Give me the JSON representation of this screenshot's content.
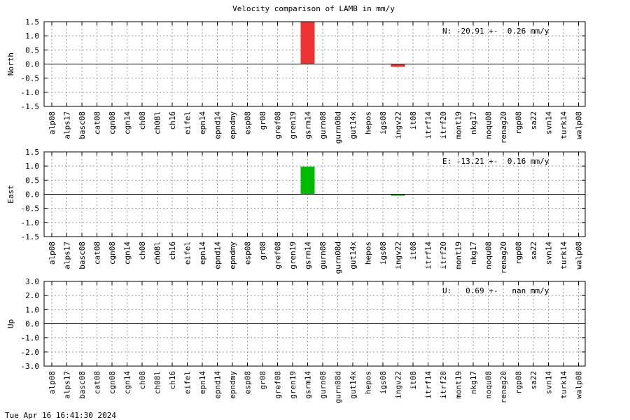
{
  "footer": "Tue Apr 16 16:41:30 2024",
  "colors": {
    "north_bar": "#ee3333",
    "east_bar": "#00bb00",
    "up_bar": "#0000cc",
    "grid": "#9a9a9a"
  },
  "chart_data": [
    {
      "type": "bar",
      "title": "Velocity comparison of LAMB in mm/y",
      "ylabel": "North",
      "annotation": "N: -20.91 +-  0.26 mm/y",
      "ylim": [
        -1.5,
        1.5
      ],
      "yticks": [
        "1.5",
        "1.0",
        "0.5",
        "0.0",
        "-0.5",
        "-1.0",
        "-1.5"
      ],
      "grid": true,
      "categories": [
        "alp08",
        "alps17",
        "basc08",
        "cat08",
        "cgn08",
        "cgn14",
        "ch08",
        "ch08l",
        "ch16",
        "eifel",
        "epn14",
        "epnd14",
        "epndmy",
        "esp08",
        "gr08",
        "gref08",
        "gren19",
        "gsrm14",
        "gurn08",
        "gurn08d",
        "gut14x",
        "hepos",
        "igs08",
        "ingv22",
        "it08",
        "itrf14",
        "itrf20",
        "mont19",
        "nkg17",
        "noqu08",
        "renag20",
        "rgp08",
        "sa22",
        "svn14",
        "turk14",
        "walp08"
      ],
      "values": [
        0,
        0,
        0,
        0,
        0,
        0,
        0,
        0,
        0,
        0,
        0,
        0,
        0,
        0,
        0,
        0,
        0,
        1.5,
        0,
        0,
        0,
        0,
        0,
        -0.1,
        0,
        0,
        0,
        0,
        0,
        0,
        0,
        0,
        0,
        0,
        0,
        0
      ]
    },
    {
      "type": "bar",
      "title": "",
      "ylabel": "East",
      "annotation": "E: -13.21 +-  0.16 mm/y",
      "ylim": [
        -1.5,
        1.5
      ],
      "yticks": [
        "1.5",
        "1.0",
        "0.5",
        "0.0",
        "-0.5",
        "-1.0",
        "-1.5"
      ],
      "grid": true,
      "categories": [
        "alp08",
        "alps17",
        "basc08",
        "cat08",
        "cgn08",
        "cgn14",
        "ch08",
        "ch08l",
        "ch16",
        "eifel",
        "epn14",
        "epnd14",
        "epndmy",
        "esp08",
        "gr08",
        "gref08",
        "gren19",
        "gsrm14",
        "gurn08",
        "gurn08d",
        "gut14x",
        "hepos",
        "igs08",
        "ingv22",
        "it08",
        "itrf14",
        "itrf20",
        "mont19",
        "nkg17",
        "noqu08",
        "renag20",
        "rgp08",
        "sa22",
        "svn14",
        "turk14",
        "walp08"
      ],
      "values": [
        0,
        0,
        0,
        0,
        0,
        0,
        0,
        0,
        0,
        0,
        0,
        0,
        0,
        0,
        0,
        0,
        0,
        0.98,
        0,
        0,
        0,
        0,
        0,
        -0.05,
        0,
        0,
        0,
        0,
        0,
        0,
        0,
        0,
        0,
        0,
        0,
        0
      ]
    },
    {
      "type": "bar",
      "title": "",
      "ylabel": "Up",
      "annotation": "U:   0.69 +-   nan mm/y",
      "ylim": [
        -3.0,
        3.0
      ],
      "yticks": [
        "3.0",
        "2.0",
        "1.0",
        "0.0",
        "-1.0",
        "-2.0",
        "-3.0"
      ],
      "grid": true,
      "categories": [
        "alp08",
        "alps17",
        "basc08",
        "cat08",
        "cgn08",
        "cgn14",
        "ch08",
        "ch08l",
        "ch16",
        "eifel",
        "epn14",
        "epnd14",
        "epndmy",
        "esp08",
        "gr08",
        "gref08",
        "gren19",
        "gsrm14",
        "gurn08",
        "gurn08d",
        "gut14x",
        "hepos",
        "igs08",
        "ingv22",
        "it08",
        "itrf14",
        "itrf20",
        "mont19",
        "nkg17",
        "noqu08",
        "renag20",
        "rgp08",
        "sa22",
        "svn14",
        "turk14",
        "walp08"
      ],
      "values": [
        0,
        0,
        0,
        0,
        0,
        0,
        0,
        0,
        0,
        0,
        0,
        0,
        0,
        0,
        0,
        0,
        0,
        0,
        0,
        0,
        0,
        0,
        0,
        0,
        0,
        0,
        0,
        0,
        0,
        0,
        0,
        0,
        0,
        0,
        0,
        0
      ]
    }
  ]
}
